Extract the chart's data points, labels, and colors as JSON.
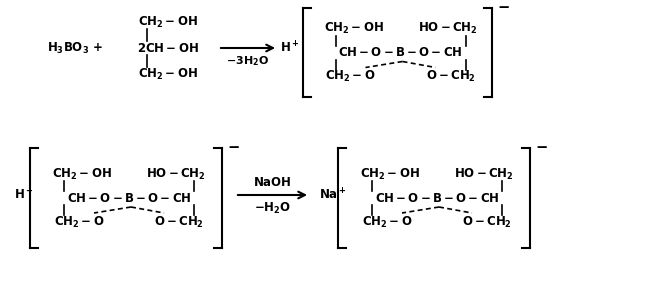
{
  "bg_color": "#ffffff",
  "fig_width": 6.46,
  "fig_height": 3.01,
  "dpi": 100,
  "font_size": 8.5,
  "font_family": "Arial"
}
